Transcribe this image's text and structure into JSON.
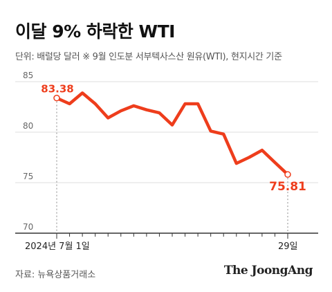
{
  "header": {
    "title": "이달 9% 하락한 WTI",
    "unit_note": "단위: 배럴당 달러  ※ 9월 인도분 서부텍사스산 원유(WTI), 현지시간 기준"
  },
  "footer": {
    "source": "자료: 뉴욕상품거래소",
    "brand": "The JoongAng"
  },
  "colors": {
    "line": "#ee3d1c",
    "label": "#ee3d1c",
    "grid": "#dddddd",
    "axis": "#333333",
    "tick_text": "#666666"
  },
  "chart_data": {
    "type": "line",
    "title": "이달 9% 하락한 WTI",
    "ylim": [
      70,
      85
    ],
    "yticks": [
      70,
      75,
      80,
      85
    ],
    "x_labels": {
      "first": "2024년 7월 1일",
      "last": "29일"
    },
    "values": [
      83.38,
      82.81,
      83.88,
      82.81,
      81.41,
      82.11,
      82.61,
      82.21,
      81.91,
      80.71,
      82.81,
      82.81,
      80.11,
      79.81,
      76.91,
      77.51,
      78.21,
      77.01,
      75.81
    ],
    "start_label": "83.38",
    "end_label": "75.81",
    "grid": true
  }
}
